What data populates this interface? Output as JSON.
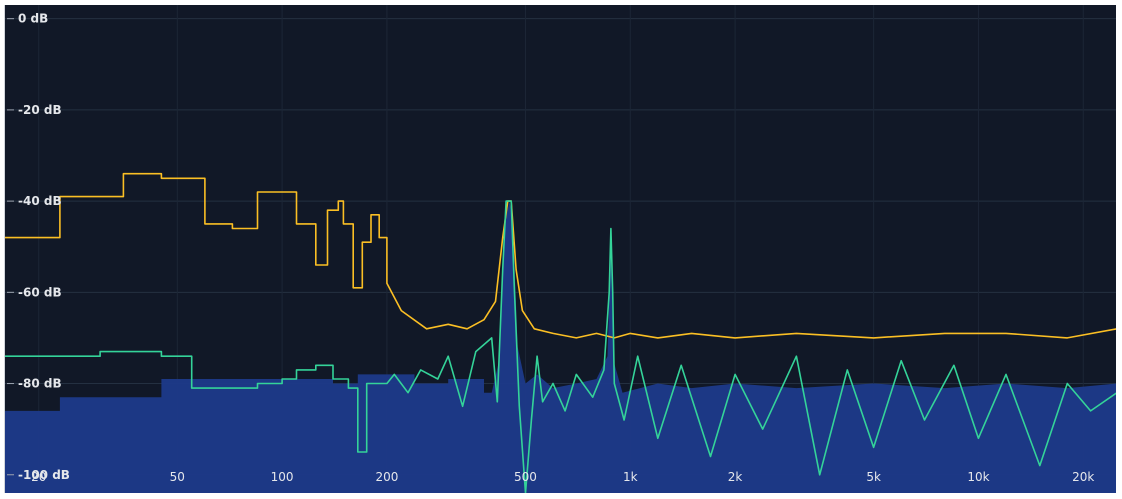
{
  "chart_data": {
    "type": "area",
    "title": "",
    "xscale": "log",
    "xlim": [
      16,
      25000
    ],
    "ylim": [
      -104,
      3
    ],
    "x_ticks": [
      {
        "value": 20,
        "label": "20"
      },
      {
        "value": 50,
        "label": "50"
      },
      {
        "value": 100,
        "label": "100"
      },
      {
        "value": 200,
        "label": "200"
      },
      {
        "value": 500,
        "label": "500"
      },
      {
        "value": 1000,
        "label": "1k"
      },
      {
        "value": 2000,
        "label": "2k"
      },
      {
        "value": 5000,
        "label": "5k"
      },
      {
        "value": 10000,
        "label": "10k"
      },
      {
        "value": 20000,
        "label": "20k"
      }
    ],
    "y_ticks": [
      {
        "value": 0,
        "label": "0 dB"
      },
      {
        "value": -20,
        "label": "-20 dB"
      },
      {
        "value": -40,
        "label": "-40 dB"
      },
      {
        "value": -60,
        "label": "-60 dB"
      },
      {
        "value": -80,
        "label": "-80 dB"
      },
      {
        "value": -100,
        "label": "-100 dB"
      }
    ],
    "grid": true,
    "legend": "none",
    "series": [
      {
        "kind": "area",
        "color": "#1e3a8a",
        "points": [
          [
            16,
            -86
          ],
          [
            23,
            -86
          ],
          [
            23,
            -83
          ],
          [
            45,
            -83
          ],
          [
            45,
            -79
          ],
          [
            140,
            -79
          ],
          [
            140,
            -80
          ],
          [
            165,
            -80
          ],
          [
            165,
            -78
          ],
          [
            240,
            -78
          ],
          [
            240,
            -80
          ],
          [
            300,
            -80
          ],
          [
            300,
            -79
          ],
          [
            380,
            -79
          ],
          [
            380,
            -82
          ],
          [
            400,
            -82
          ],
          [
            420,
            -75
          ],
          [
            435,
            -45
          ],
          [
            450,
            -40
          ],
          [
            460,
            -45
          ],
          [
            475,
            -72
          ],
          [
            500,
            -80
          ],
          [
            540,
            -78
          ],
          [
            600,
            -81
          ],
          [
            700,
            -80
          ],
          [
            800,
            -79
          ],
          [
            860,
            -74
          ],
          [
            880,
            -50
          ],
          [
            895,
            -75
          ],
          [
            950,
            -82
          ],
          [
            1200,
            -80
          ],
          [
            1500,
            -81
          ],
          [
            2000,
            -80
          ],
          [
            3000,
            -81
          ],
          [
            5000,
            -80
          ],
          [
            8000,
            -81
          ],
          [
            12000,
            -80
          ],
          [
            18000,
            -81
          ],
          [
            25000,
            -80
          ]
        ]
      },
      {
        "kind": "line",
        "color": "#fbbf24",
        "points": [
          [
            16,
            -48
          ],
          [
            23,
            -48
          ],
          [
            23,
            -39
          ],
          [
            35,
            -39
          ],
          [
            35,
            -34
          ],
          [
            45,
            -34
          ],
          [
            45,
            -35
          ],
          [
            60,
            -35
          ],
          [
            60,
            -45
          ],
          [
            72,
            -45
          ],
          [
            72,
            -46
          ],
          [
            85,
            -46
          ],
          [
            85,
            -38
          ],
          [
            110,
            -38
          ],
          [
            110,
            -45
          ],
          [
            125,
            -45
          ],
          [
            125,
            -54
          ],
          [
            135,
            -54
          ],
          [
            135,
            -42
          ],
          [
            145,
            -42
          ],
          [
            145,
            -40
          ],
          [
            150,
            -40
          ],
          [
            150,
            -45
          ],
          [
            160,
            -45
          ],
          [
            160,
            -59
          ],
          [
            170,
            -59
          ],
          [
            170,
            -49
          ],
          [
            180,
            -49
          ],
          [
            180,
            -43
          ],
          [
            190,
            -43
          ],
          [
            190,
            -48
          ],
          [
            200,
            -48
          ],
          [
            200,
            -58
          ],
          [
            220,
            -64
          ],
          [
            260,
            -68
          ],
          [
            300,
            -67
          ],
          [
            340,
            -68
          ],
          [
            380,
            -66
          ],
          [
            410,
            -62
          ],
          [
            430,
            -48
          ],
          [
            445,
            -40
          ],
          [
            455,
            -40
          ],
          [
            470,
            -55
          ],
          [
            490,
            -64
          ],
          [
            530,
            -68
          ],
          [
            600,
            -69
          ],
          [
            700,
            -70
          ],
          [
            800,
            -69
          ],
          [
            900,
            -70
          ],
          [
            1000,
            -69
          ],
          [
            1200,
            -70
          ],
          [
            1500,
            -69
          ],
          [
            2000,
            -70
          ],
          [
            3000,
            -69
          ],
          [
            5000,
            -70
          ],
          [
            8000,
            -69
          ],
          [
            12000,
            -69
          ],
          [
            18000,
            -70
          ],
          [
            25000,
            -68
          ]
        ]
      },
      {
        "kind": "line",
        "color": "#34d399",
        "points": [
          [
            16,
            -74
          ],
          [
            30,
            -74
          ],
          [
            30,
            -73
          ],
          [
            45,
            -73
          ],
          [
            45,
            -74
          ],
          [
            55,
            -74
          ],
          [
            55,
            -81
          ],
          [
            85,
            -81
          ],
          [
            85,
            -80
          ],
          [
            100,
            -80
          ],
          [
            100,
            -79
          ],
          [
            110,
            -79
          ],
          [
            110,
            -77
          ],
          [
            125,
            -77
          ],
          [
            125,
            -76
          ],
          [
            140,
            -76
          ],
          [
            140,
            -79
          ],
          [
            155,
            -79
          ],
          [
            155,
            -81
          ],
          [
            165,
            -81
          ],
          [
            165,
            -95
          ],
          [
            175,
            -95
          ],
          [
            175,
            -80
          ],
          [
            200,
            -80
          ],
          [
            210,
            -78
          ],
          [
            230,
            -82
          ],
          [
            250,
            -77
          ],
          [
            280,
            -79
          ],
          [
            300,
            -74
          ],
          [
            330,
            -85
          ],
          [
            360,
            -73
          ],
          [
            400,
            -70
          ],
          [
            415,
            -84
          ],
          [
            430,
            -55
          ],
          [
            440,
            -40
          ],
          [
            455,
            -40
          ],
          [
            465,
            -60
          ],
          [
            480,
            -85
          ],
          [
            500,
            -104
          ],
          [
            520,
            -88
          ],
          [
            540,
            -74
          ],
          [
            560,
            -84
          ],
          [
            600,
            -80
          ],
          [
            650,
            -86
          ],
          [
            700,
            -78
          ],
          [
            780,
            -83
          ],
          [
            840,
            -77
          ],
          [
            870,
            -60
          ],
          [
            880,
            -46
          ],
          [
            890,
            -60
          ],
          [
            900,
            -80
          ],
          [
            960,
            -88
          ],
          [
            1050,
            -74
          ],
          [
            1200,
            -92
          ],
          [
            1400,
            -76
          ],
          [
            1700,
            -96
          ],
          [
            2000,
            -78
          ],
          [
            2400,
            -90
          ],
          [
            3000,
            -74
          ],
          [
            3500,
            -100
          ],
          [
            4200,
            -77
          ],
          [
            5000,
            -94
          ],
          [
            6000,
            -75
          ],
          [
            7000,
            -88
          ],
          [
            8500,
            -76
          ],
          [
            10000,
            -92
          ],
          [
            12000,
            -78
          ],
          [
            15000,
            -98
          ],
          [
            18000,
            -80
          ],
          [
            21000,
            -86
          ],
          [
            25000,
            -82
          ]
        ]
      }
    ]
  }
}
